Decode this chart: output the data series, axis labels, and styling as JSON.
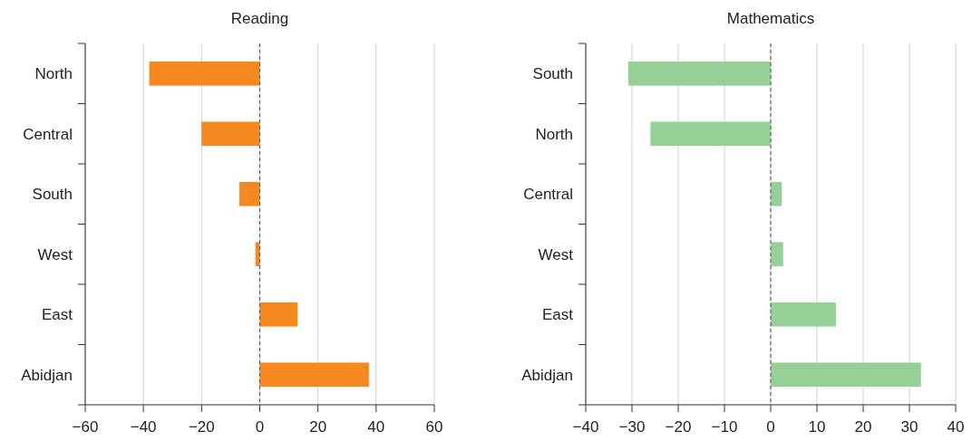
{
  "chart_data": [
    {
      "type": "bar",
      "orientation": "horizontal",
      "title": "Reading",
      "categories": [
        "North",
        "Central",
        "South",
        "West",
        "East",
        "Abidjan"
      ],
      "values": [
        -38,
        -20,
        -7,
        -1.5,
        13,
        37.5
      ],
      "color": "#f5891f",
      "xlim": [
        -60,
        60
      ],
      "xticks": [
        {
          "value": -60,
          "label": "−60"
        },
        {
          "value": -40,
          "label": "−40"
        },
        {
          "value": -20,
          "label": "−20"
        },
        0,
        20,
        40,
        60
      ],
      "grid": "x",
      "ref_lines": [
        {
          "axis": "x",
          "value": 0,
          "color": "#555555",
          "line_style": "dashed"
        }
      ]
    },
    {
      "type": "bar",
      "orientation": "horizontal",
      "title": "Mathematics",
      "categories": [
        "South",
        "North",
        "Central",
        "West",
        "East",
        "Abidjan"
      ],
      "values": [
        -30.8,
        -26,
        2.4,
        2.7,
        14.1,
        32.5
      ],
      "color": "#95d096",
      "xlim": [
        -40,
        40
      ],
      "xticks": [
        {
          "value": -40,
          "label": "−40"
        },
        {
          "value": -30,
          "label": "−30"
        },
        {
          "value": -20,
          "label": "−20"
        },
        {
          "value": -10,
          "label": "−10"
        },
        0,
        10,
        20,
        30,
        40
      ],
      "grid": "x",
      "ref_lines": [
        {
          "axis": "x",
          "value": 0,
          "color": "#555555",
          "line_style": "dashed"
        }
      ]
    }
  ]
}
